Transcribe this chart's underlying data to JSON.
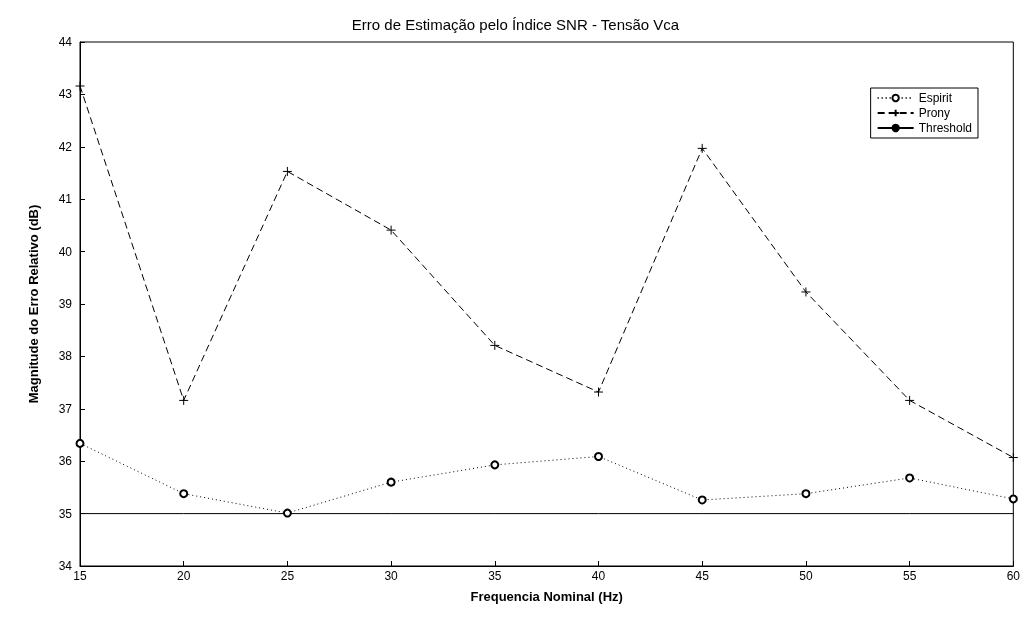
{
  "chart_data": {
    "type": "line",
    "title": "Erro de Estimação pelo Índice SNR - Tensão Vca",
    "xlabel": "Frequencia Nominal (Hz)",
    "ylabel": "Magnitude do Erro Relativo (dB)",
    "x": [
      15,
      20,
      25,
      30,
      35,
      40,
      45,
      50,
      55,
      60
    ],
    "series": [
      {
        "name": "Espirit",
        "color": "#000000",
        "marker": "circle",
        "line_style": "dotted",
        "values": [
          36.34,
          35.38,
          35.01,
          35.6,
          35.93,
          36.09,
          35.26,
          35.38,
          35.68,
          35.28
        ]
      },
      {
        "name": "Prony",
        "color": "#000000",
        "marker": "cross",
        "line_style": "dashed",
        "values": [
          43.16,
          37.16,
          41.53,
          40.41,
          38.21,
          37.32,
          41.97,
          39.23,
          37.16,
          36.07
        ]
      },
      {
        "name": "Threshold",
        "color": "#000000",
        "marker": "none",
        "line_style": "solid",
        "values": [
          35,
          35,
          35,
          35,
          35,
          35,
          35,
          35,
          35,
          35
        ]
      }
    ],
    "xlim": [
      15,
      60
    ],
    "xticks": [
      15,
      20,
      25,
      30,
      35,
      40,
      45,
      50,
      55,
      60
    ],
    "ylim": [
      34,
      44
    ],
    "yticks": [
      34,
      35,
      36,
      37,
      38,
      39,
      40,
      41,
      42,
      43,
      44
    ],
    "grid": false,
    "legend": "top right"
  }
}
